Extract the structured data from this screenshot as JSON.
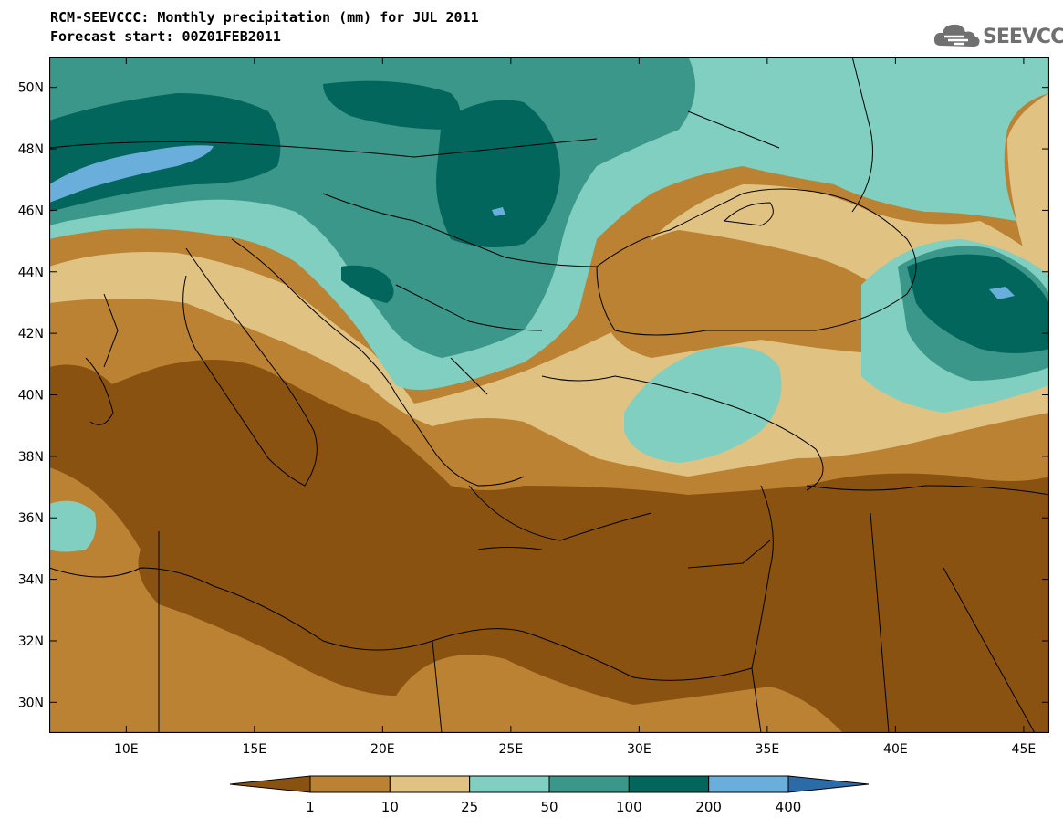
{
  "title_line1": "RCM-SEEVCCC: Monthly precipitation (mm) for JUL 2011",
  "title_line2": "Forecast start: 00Z01FEB2011",
  "logo_text": "SEEVCCC",
  "map": {
    "lon_range": [
      7,
      46
    ],
    "lat_range": [
      29,
      51
    ],
    "lon_labels": [
      "10E",
      "15E",
      "20E",
      "25E",
      "30E",
      "35E",
      "40E",
      "45E"
    ],
    "lon_values": [
      10,
      15,
      20,
      25,
      30,
      35,
      40,
      45
    ],
    "lat_labels": [
      "30N",
      "32N",
      "34N",
      "36N",
      "38N",
      "40N",
      "42N",
      "44N",
      "46N",
      "48N",
      "50N"
    ],
    "lat_values": [
      30,
      32,
      34,
      36,
      38,
      40,
      42,
      44,
      46,
      48,
      50
    ]
  },
  "colorbar": {
    "levels": [
      "1",
      "10",
      "25",
      "50",
      "100",
      "200",
      "400"
    ],
    "colors": [
      "#8a5210",
      "#ba8232",
      "#e0c283",
      "#80cfc0",
      "#3a978a",
      "#02665c",
      "#6aaedb",
      "#2b6ca8"
    ]
  }
}
